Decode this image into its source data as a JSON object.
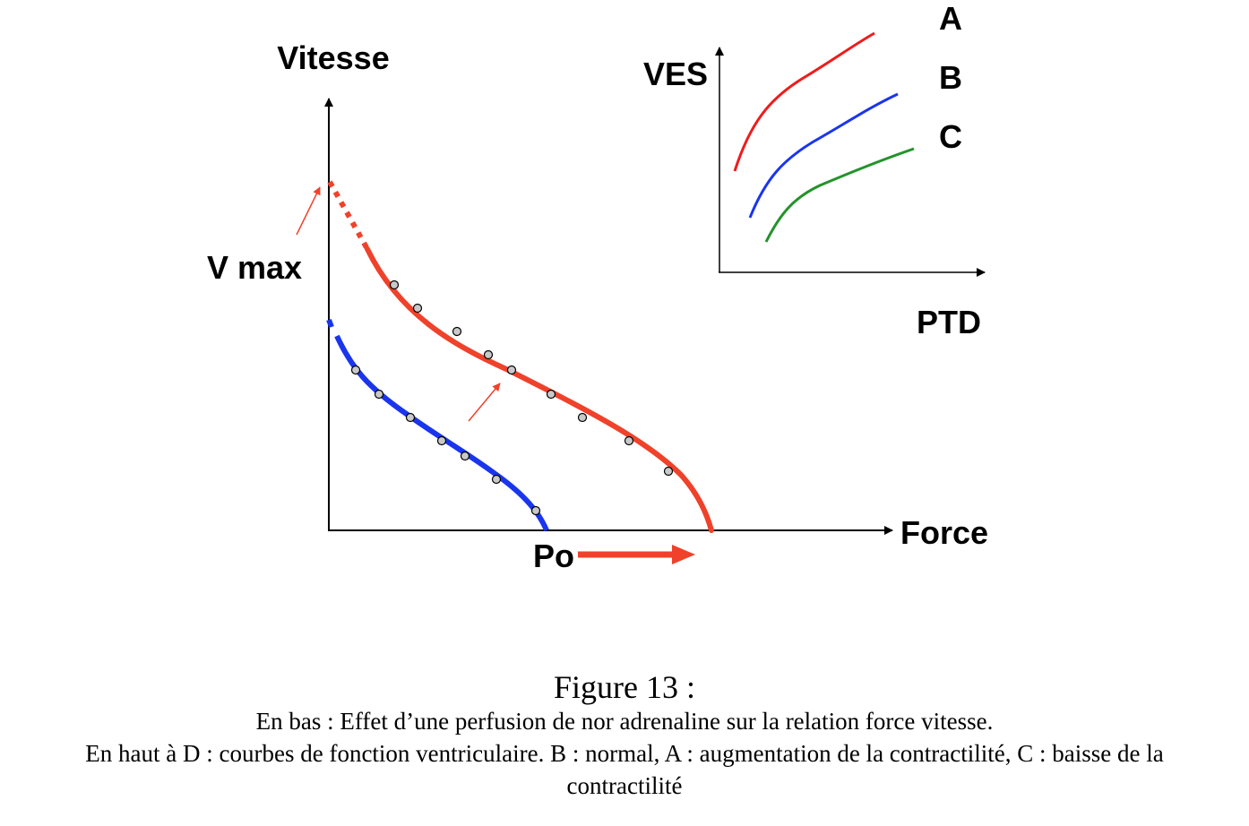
{
  "main_plot": {
    "y_label": "Vitesse",
    "x_label": "Force",
    "vmax_label": "V max",
    "po_label": "Po"
  },
  "inset_plot": {
    "y_label": "VES",
    "x_label": "PTD",
    "curve_labels": [
      "A",
      "B",
      "C"
    ]
  },
  "colors": {
    "red": "#f0412a",
    "blue": "#1a35ee",
    "inset_red": "#ee1c1c",
    "inset_blue": "#1a35ee",
    "inset_green": "#23932a",
    "marker_fill": "#c9c9c9"
  },
  "caption": {
    "title": "Figure 13 :",
    "line1": "En bas : Effet d’une perfusion de nor adrenaline sur la relation force vitesse.",
    "line2": "En haut à D : courbes de fonction ventriculaire. B : normal, A : augmentation de la contractilité, C : baisse de la",
    "line3": "contractilité"
  }
}
